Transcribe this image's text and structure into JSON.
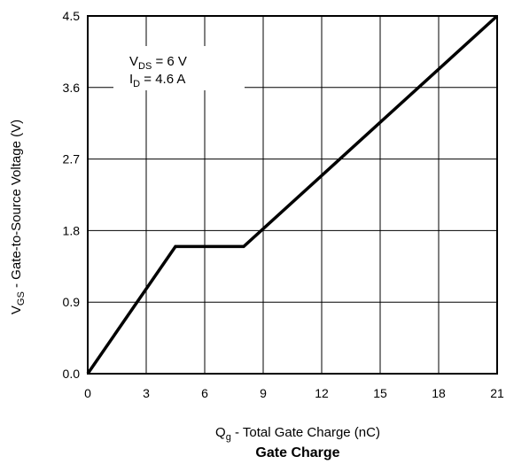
{
  "chart_data": {
    "type": "line",
    "caption": "Gate Charge",
    "xlabel": {
      "main": "Q",
      "sub": "g",
      "rest": " - Total Gate Charge (nC)"
    },
    "ylabel": {
      "main": "V",
      "sub": "GS",
      "rest": " - Gate-to-Source Voltage (V)"
    },
    "xlim": [
      0,
      21
    ],
    "ylim": [
      0,
      4.5
    ],
    "x_ticks": [
      0,
      3,
      6,
      9,
      12,
      15,
      18,
      21
    ],
    "x_tick_labels": [
      "0",
      "3",
      "6",
      "9",
      "12",
      "15",
      "18",
      "21"
    ],
    "y_ticks": [
      0,
      0.9,
      1.8,
      2.7,
      3.6,
      4.5
    ],
    "y_tick_labels": [
      "0.0",
      "0.9",
      "1.8",
      "2.7",
      "3.6",
      "4.5"
    ],
    "grid": true,
    "annotation": {
      "line1": {
        "main": "V",
        "sub": "DS",
        "rest": " = 6 V"
      },
      "line2": {
        "main": "I",
        "sub": "D",
        "rest": " = 4.6 A"
      }
    },
    "series": [
      {
        "x": [
          0,
          4.5,
          8.0,
          21
        ],
        "y": [
          0,
          1.6,
          1.6,
          4.5
        ]
      }
    ]
  }
}
